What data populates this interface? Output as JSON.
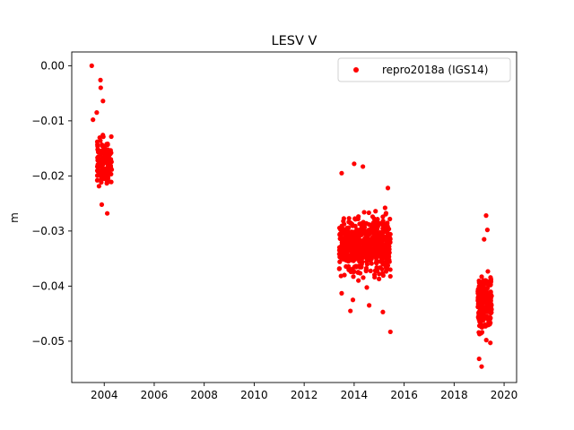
{
  "chart_data": {
    "type": "scatter",
    "title": "LESV V",
    "xlabel": "",
    "ylabel": "m",
    "xlim": [
      2002.7,
      2020.5
    ],
    "ylim": [
      -0.0575,
      0.0025
    ],
    "x_ticks": [
      2004,
      2006,
      2008,
      2010,
      2012,
      2014,
      2016,
      2018,
      2020
    ],
    "x_tick_labels": [
      "2004",
      "2006",
      "2008",
      "2010",
      "2012",
      "2014",
      "2016",
      "2018",
      "2020"
    ],
    "y_ticks": [
      0.0,
      -0.01,
      -0.02,
      -0.03,
      -0.04,
      -0.05
    ],
    "y_tick_labels": [
      "0.00",
      "−0.01",
      "−0.02",
      "−0.03",
      "−0.04",
      "−0.05"
    ],
    "grid": false,
    "legend_position": "top-right",
    "marker": "circle",
    "color": "#ff0000",
    "series": [
      {
        "name": "repro2018a (IGS14)",
        "clusters": [
          {
            "x_range": [
              2003.45,
              2003.55
            ],
            "points": [
              [
                2003.5,
                0.0
              ],
              [
                2003.55,
                -0.0098
              ]
            ]
          },
          {
            "x_range": [
              2003.72,
              2004.3
            ],
            "center": -0.0175,
            "spread": 0.0035,
            "count": 150,
            "extremes": [
              [
                2003.85,
                -0.0026
              ],
              [
                2003.86,
                -0.004
              ],
              [
                2003.7,
                -0.0085
              ],
              [
                2004.12,
                -0.0268
              ],
              [
                2003.95,
                -0.0064
              ],
              [
                2003.9,
                -0.0252
              ]
            ]
          },
          {
            "x_range": [
              2013.4,
              2015.45
            ],
            "center": -0.0325,
            "spread": 0.0042,
            "count": 620,
            "extremes": [
              [
                2013.5,
                -0.0195
              ],
              [
                2014.0,
                -0.0178
              ],
              [
                2014.35,
                -0.0183
              ],
              [
                2015.35,
                -0.0222
              ],
              [
                2013.5,
                -0.0413
              ],
              [
                2013.85,
                -0.0445
              ],
              [
                2015.15,
                -0.0447
              ],
              [
                2015.45,
                -0.0483
              ],
              [
                2014.6,
                -0.0435
              ],
              [
                2013.95,
                -0.0425
              ]
            ]
          },
          {
            "x_range": [
              2018.95,
              2019.5
            ],
            "center": -0.0425,
            "spread": 0.0038,
            "count": 260,
            "extremes": [
              [
                2019.28,
                -0.0272
              ],
              [
                2019.33,
                -0.0298
              ],
              [
                2019.1,
                -0.0546
              ],
              [
                2019.0,
                -0.0532
              ],
              [
                2019.45,
                -0.0503
              ],
              [
                2019.2,
                -0.0315
              ]
            ]
          }
        ]
      }
    ]
  }
}
